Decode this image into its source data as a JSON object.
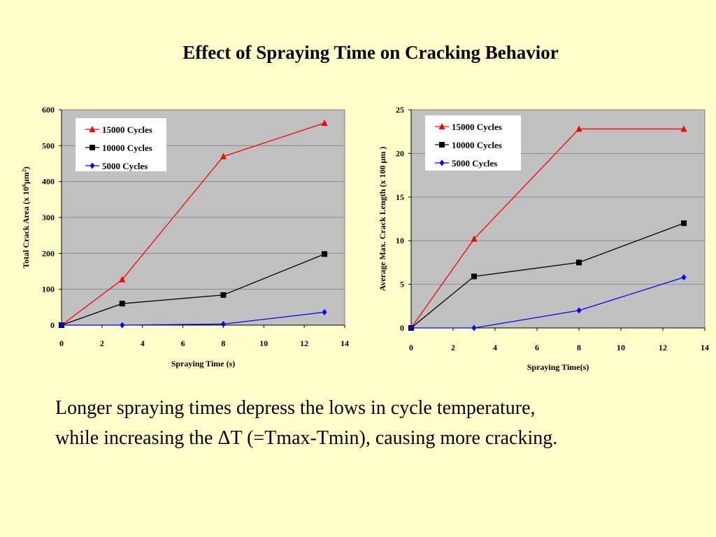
{
  "slide": {
    "title": "Effect of Spraying Time on Cracking Behavior",
    "caption_line1": "Longer spraying times depress the lows in cycle temperature,",
    "caption_line2": "while increasing the ΔT (=Tmax-Tmin), causing more cracking."
  },
  "chart_data": [
    {
      "type": "line",
      "title": "",
      "xlabel": "Spraying Time (s)",
      "ylabel_parts": [
        "Total Crack Area (x 10",
        "6",
        "µm",
        "2",
        ")"
      ],
      "xlim": [
        0,
        14
      ],
      "ylim": [
        0,
        600
      ],
      "xticks": [
        0,
        2,
        4,
        6,
        8,
        10,
        12,
        14
      ],
      "yticks": [
        0,
        100,
        200,
        300,
        400,
        500,
        600
      ],
      "grid": true,
      "legend_position": "top-left",
      "series": [
        {
          "name": "15000 Cycles",
          "color": "#FF0000",
          "marker": "triangle",
          "x": [
            0,
            3,
            8,
            13
          ],
          "y": [
            0,
            127,
            470,
            563
          ]
        },
        {
          "name": "10000 Cycles",
          "color": "#000000",
          "marker": "square",
          "x": [
            0,
            3,
            8,
            13
          ],
          "y": [
            0,
            60,
            84,
            198
          ]
        },
        {
          "name": "5000 Cycles",
          "color": "#0000FF",
          "marker": "diamond",
          "x": [
            0,
            3,
            8,
            13
          ],
          "y": [
            0,
            0,
            3,
            36
          ]
        }
      ]
    },
    {
      "type": "line",
      "title": "",
      "xlabel": "Spraying Time(s)",
      "ylabel_parts": [
        "Average Max. Crack Length (x 100 µm )"
      ],
      "xlim": [
        0,
        14
      ],
      "ylim": [
        0,
        25
      ],
      "xticks": [
        0,
        2,
        4,
        6,
        8,
        10,
        12,
        14
      ],
      "yticks": [
        0,
        5,
        10,
        15,
        20,
        25
      ],
      "grid": true,
      "legend_position": "top-left",
      "series": [
        {
          "name": "15000 Cycles",
          "color": "#FF0000",
          "marker": "triangle",
          "x": [
            0,
            3,
            8,
            13
          ],
          "y": [
            0,
            10.2,
            22.8,
            22.8
          ]
        },
        {
          "name": "10000 Cycles",
          "color": "#000000",
          "marker": "square",
          "x": [
            0,
            3,
            8,
            13
          ],
          "y": [
            0,
            5.9,
            7.5,
            12
          ]
        },
        {
          "name": "5000 Cycles",
          "color": "#0000FF",
          "marker": "diamond",
          "x": [
            0,
            3,
            8,
            13
          ],
          "y": [
            0,
            0,
            2,
            5.8
          ]
        }
      ]
    }
  ]
}
